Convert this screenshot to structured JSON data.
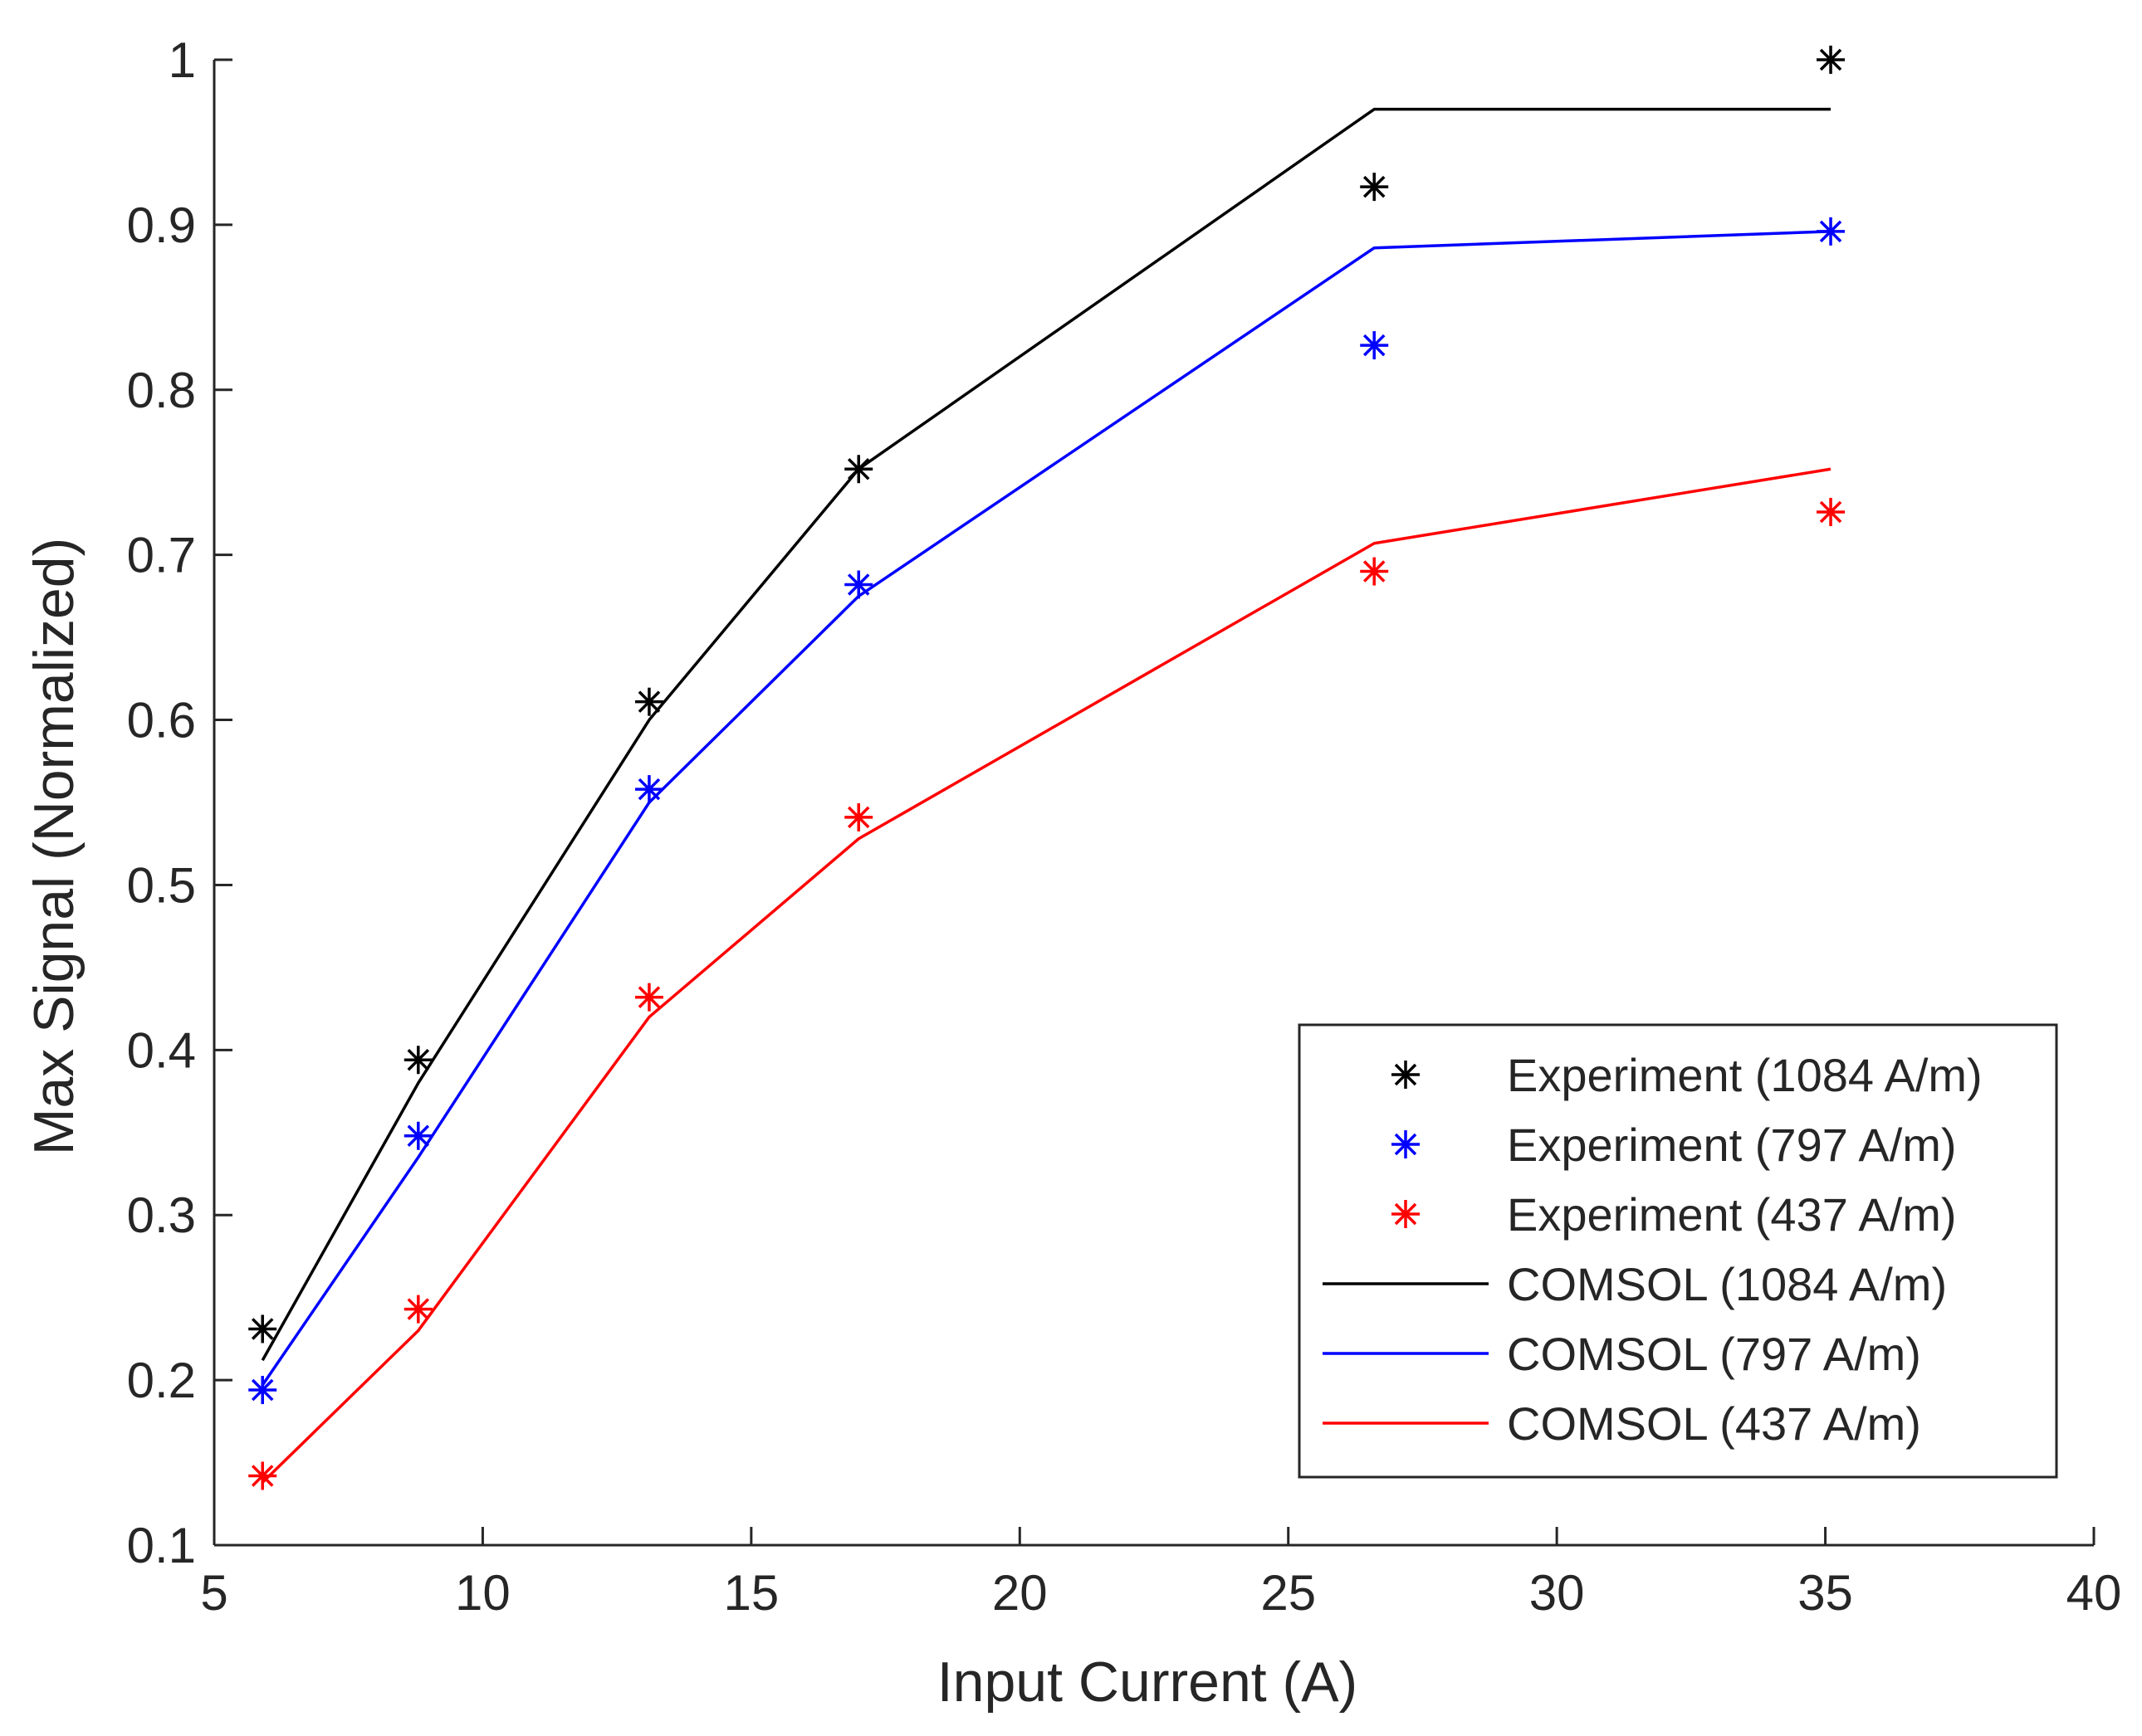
{
  "chart_data": {
    "type": "line",
    "title": "",
    "xlabel": "Input Current (A)",
    "ylabel": "Max Signal (Normalized)",
    "xlim": [
      5,
      40
    ],
    "ylim": [
      0.1,
      1
    ],
    "xticks": [
      5,
      10,
      15,
      20,
      25,
      30,
      35,
      40
    ],
    "yticks": [
      0.1,
      0.2,
      0.3,
      0.4,
      0.5,
      0.6,
      0.7,
      0.8,
      0.9,
      1
    ],
    "xtick_labels": [
      "5",
      "10",
      "15",
      "20",
      "25",
      "30",
      "35",
      "40"
    ],
    "ytick_labels": [
      "0.1",
      "0.2",
      "0.3",
      "0.4",
      "0.5",
      "0.6",
      "0.7",
      "0.8",
      "0.9",
      "1"
    ],
    "grid": false,
    "legend_position": "bottom-right",
    "x": [
      5.9,
      8.8,
      13.1,
      17.0,
      26.6,
      35.1
    ],
    "series": [
      {
        "name": "Experiment (1084 A/m)",
        "kind": "marker",
        "marker": "asterisk",
        "color": "#000000",
        "values": [
          0.231,
          0.394,
          0.611,
          0.752,
          0.923,
          1.0
        ]
      },
      {
        "name": "Experiment (797 A/m)",
        "kind": "marker",
        "marker": "asterisk",
        "color": "#0000ff",
        "values": [
          0.194,
          0.348,
          0.558,
          0.682,
          0.827,
          0.896
        ]
      },
      {
        "name": "Experiment (437 A/m)",
        "kind": "marker",
        "marker": "asterisk",
        "color": "#ff0000",
        "values": [
          0.142,
          0.243,
          0.432,
          0.541,
          0.69,
          0.726
        ]
      },
      {
        "name": "COMSOL (1084 A/m)",
        "kind": "line",
        "color": "#000000",
        "values": [
          0.212,
          0.38,
          0.6,
          0.752,
          0.97,
          0.97
        ]
      },
      {
        "name": "COMSOL (797 A/m)",
        "kind": "line",
        "color": "#0000ff",
        "values": [
          0.197,
          0.335,
          0.55,
          0.675,
          0.886,
          0.896
        ]
      },
      {
        "name": "COMSOL (437 A/m)",
        "kind": "line",
        "color": "#ff0000",
        "values": [
          0.138,
          0.23,
          0.42,
          0.528,
          0.707,
          0.752
        ]
      }
    ]
  }
}
